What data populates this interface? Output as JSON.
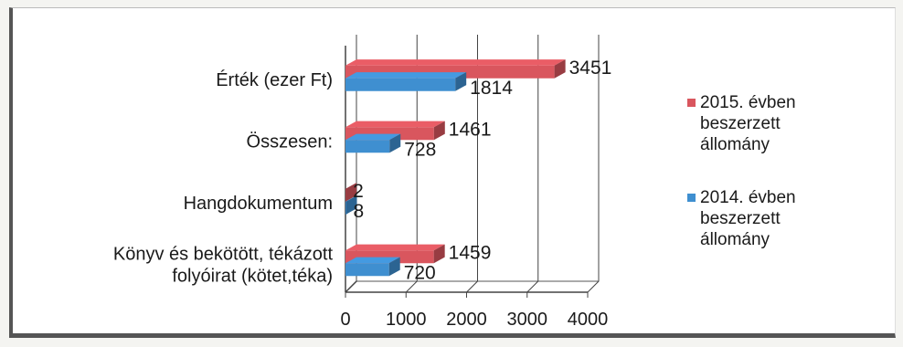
{
  "chart_data": {
    "type": "bar",
    "orientation": "horizontal",
    "style": "3d",
    "categories": [
      [
        "Érték (ezer Ft)"
      ],
      [
        "Összesen:"
      ],
      [
        "Hangdokumentum"
      ],
      [
        "Könyv és bekötött, tékázott",
        "folyóirat (kötet,téka)"
      ]
    ],
    "series": [
      {
        "name": [
          "2015. évben",
          "beszerzett",
          "állomány"
        ],
        "color": "#d9565e",
        "values": [
          3451,
          1461,
          2,
          1459
        ]
      },
      {
        "name": [
          "2014. évben",
          "beszerzett",
          "állomány"
        ],
        "color": "#3f8fd0",
        "values": [
          1814,
          728,
          8,
          720
        ]
      }
    ],
    "xlim": [
      0,
      4000
    ],
    "xticks": [
      "0",
      "1000",
      "2000",
      "3000",
      "4000"
    ],
    "grid": true,
    "legend": "right"
  }
}
